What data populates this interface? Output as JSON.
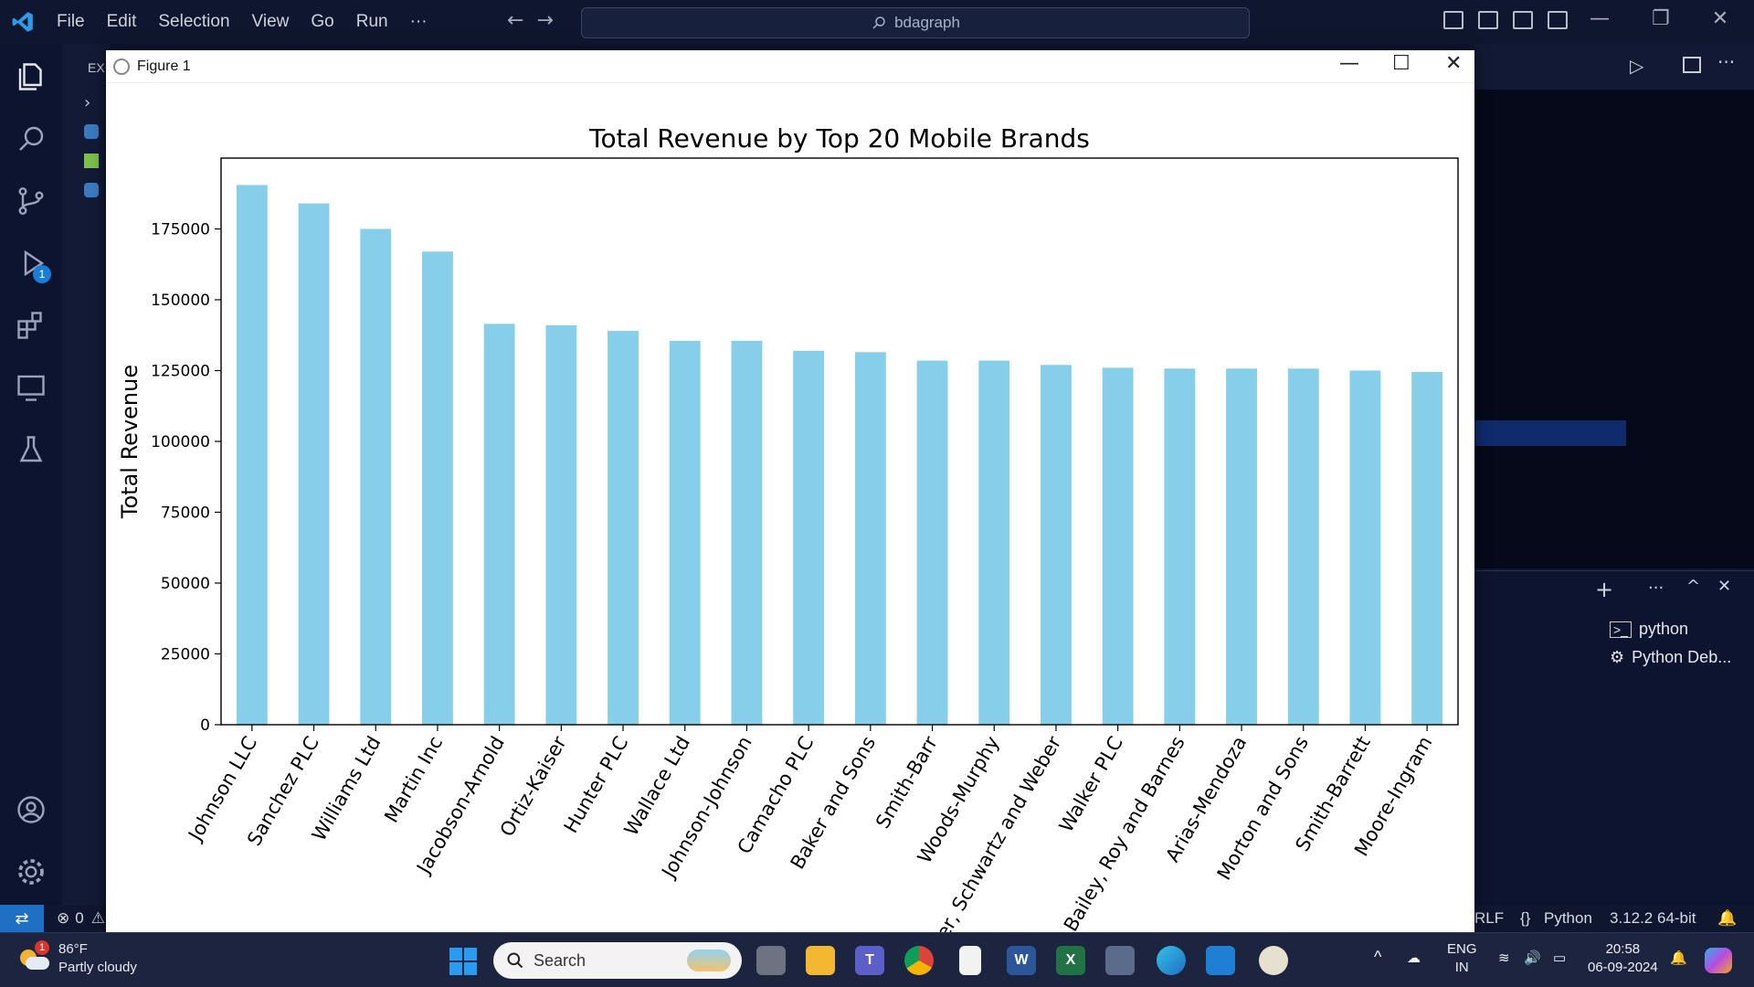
{
  "menu": [
    "File",
    "Edit",
    "Selection",
    "View",
    "Go",
    "Run",
    "···"
  ],
  "command_center": {
    "text": "bdagraph"
  },
  "sidebar": {
    "header": "EX"
  },
  "activity_badge": "1",
  "panel": {
    "terminals": [
      "python",
      "Python Deb..."
    ]
  },
  "statusbar": {
    "errors": "0",
    "line_ending": "RLF",
    "language": "Python",
    "interpreter": "3.12.2 64-bit"
  },
  "figure_window": {
    "title": "Figure 1",
    "minimize": "—",
    "maximize": "☐",
    "close": "✕"
  },
  "chart_data": {
    "type": "bar",
    "title": "Total Revenue by Top 20 Mobile Brands",
    "xlabel": "",
    "ylabel": "Total Revenue",
    "ylim": [
      0,
      200000
    ],
    "yticks": [
      "0",
      "25000",
      "50000",
      "75000",
      "100000",
      "125000",
      "150000",
      "175000"
    ],
    "bar_color": "#87ceeb",
    "categories": [
      "Johnson LLC",
      "Sanchez PLC",
      "Williams Ltd",
      "Martin Inc",
      "Jacobson-Arnold",
      "Ortiz-Kaiser",
      "Hunter PLC",
      "Wallace Ltd",
      "Johnson-Johnson",
      "Camacho PLC",
      "Baker and Sons",
      "Smith-Barr",
      "Woods-Murphy",
      "Renner, Schwartz and Weber",
      "Walker PLC",
      "Bailey, Roy and Barnes",
      "Arias-Mendoza",
      "Morton and Sons",
      "Smith-Barrett",
      "Moore-Ingram"
    ],
    "values": [
      190500,
      184000,
      175000,
      167000,
      141500,
      141000,
      139000,
      135500,
      135500,
      132000,
      131500,
      128500,
      128500,
      127000,
      126000,
      125700,
      125700,
      125700,
      125000,
      124500
    ],
    "grid": false,
    "legend": "none"
  },
  "taskbar": {
    "weather_temp": "86°F",
    "weather_desc": "Partly cloudy",
    "weather_badge": "1",
    "search_label": "Search",
    "lang_top": "ENG",
    "lang_bottom": "IN",
    "time": "20:58",
    "date": "06-09-2024"
  }
}
